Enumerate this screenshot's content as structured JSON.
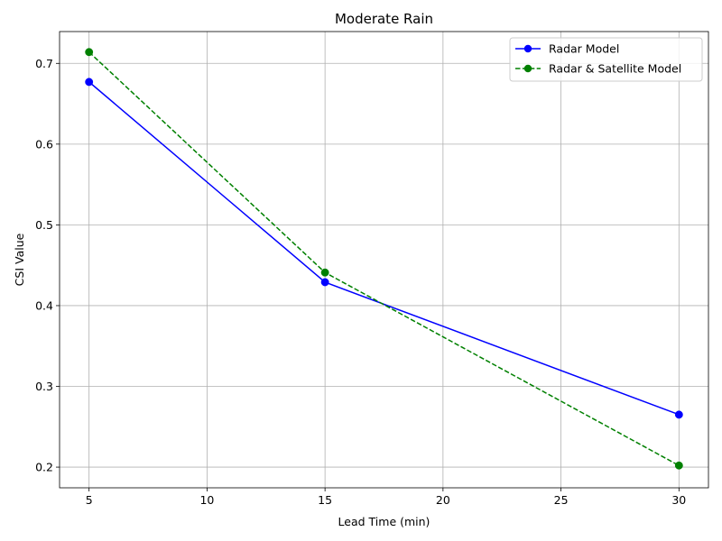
{
  "chart_data": {
    "type": "line",
    "title": "Moderate Rain",
    "xlabel": "Lead Time (min)",
    "ylabel": "CSI Value",
    "xlim": [
      3.75,
      31.25
    ],
    "ylim": [
      0.1744,
      0.7394
    ],
    "xticks": [
      5,
      10,
      15,
      20,
      25,
      30
    ],
    "yticks": [
      0.2,
      0.3,
      0.4,
      0.5,
      0.6,
      0.7
    ],
    "xtick_labels": [
      "5",
      "10",
      "15",
      "20",
      "25",
      "30"
    ],
    "ytick_labels": [
      "0.2",
      "0.3",
      "0.4",
      "0.5",
      "0.6",
      "0.7"
    ],
    "grid": true,
    "legend_position": "top-right",
    "x": [
      5,
      15,
      30
    ],
    "series": [
      {
        "name": "Radar Model",
        "values": [
          0.677,
          0.429,
          0.265
        ],
        "color": "#0000ff",
        "line_style": "solid",
        "marker": "circle"
      },
      {
        "name": "Radar & Satellite Model",
        "values": [
          0.714,
          0.441,
          0.202
        ],
        "color": "#008000",
        "line_style": "dashed",
        "marker": "circle"
      }
    ]
  }
}
